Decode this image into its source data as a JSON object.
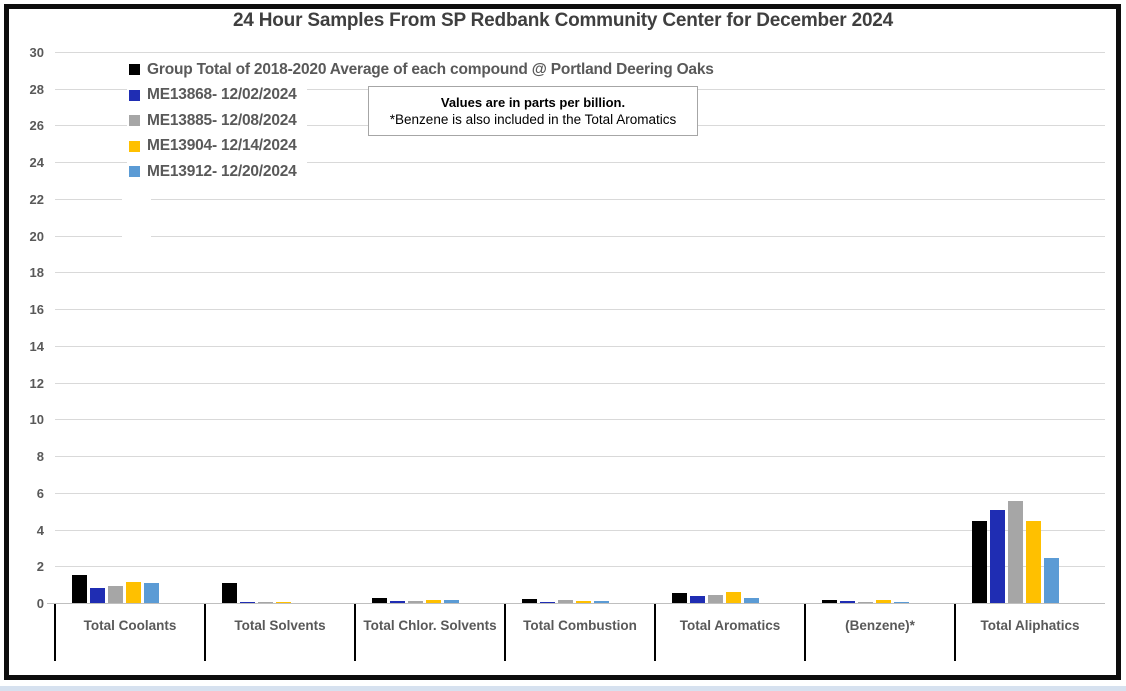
{
  "window": {
    "bottom_strip_color": "#d6e1ef",
    "frame_border_color": "#0d0d0d"
  },
  "chart": {
    "title": "24 Hour Samples From SP Redbank Community Center for December 2024",
    "annotation": {
      "line1": "Values are in parts per billion.",
      "line2": "*Benzene is also included in the Total Aromatics"
    }
  },
  "chart_data": {
    "type": "bar",
    "title": "24 Hour Samples From SP Redbank Community Center for December 2024",
    "units": "parts per billion",
    "categories": [
      "Total Coolants",
      "Total Solvents",
      "Total Chlor. Solvents",
      "Total Combustion",
      "Total Aromatics",
      "(Benzene)*",
      "Total Aliphatics"
    ],
    "series": [
      {
        "name": "Group Total of 2018-2020 Average of each compound @ Portland Deering Oaks",
        "color": "#000000",
        "values": [
          1.5,
          1.1,
          0.3,
          0.2,
          0.55,
          0.15,
          4.45
        ]
      },
      {
        "name": "ME13868- 12/02/2024",
        "color": "#1f2db3",
        "values": [
          0.8,
          0.07,
          0.12,
          0.05,
          0.4,
          0.1,
          5.05
        ]
      },
      {
        "name": "ME13885- 12/08/2024",
        "color": "#a6a6a6",
        "values": [
          0.95,
          0.07,
          0.1,
          0.15,
          0.45,
          0.08,
          5.55
        ]
      },
      {
        "name": "ME13904- 12/14/2024",
        "color": "#ffc000",
        "values": [
          1.15,
          0.07,
          0.17,
          0.1,
          0.6,
          0.15,
          4.45
        ]
      },
      {
        "name": "ME13912- 12/20/2024",
        "color": "#5b9bd5",
        "values": [
          1.1,
          0,
          0.15,
          0.1,
          0.25,
          0.08,
          2.45
        ]
      }
    ],
    "ylim": [
      0,
      30
    ],
    "ytick_step": 2,
    "grid": true,
    "gridline_color": "#d9d9d9",
    "legend_position": "inside-top-left",
    "xlabel": "",
    "ylabel": ""
  }
}
